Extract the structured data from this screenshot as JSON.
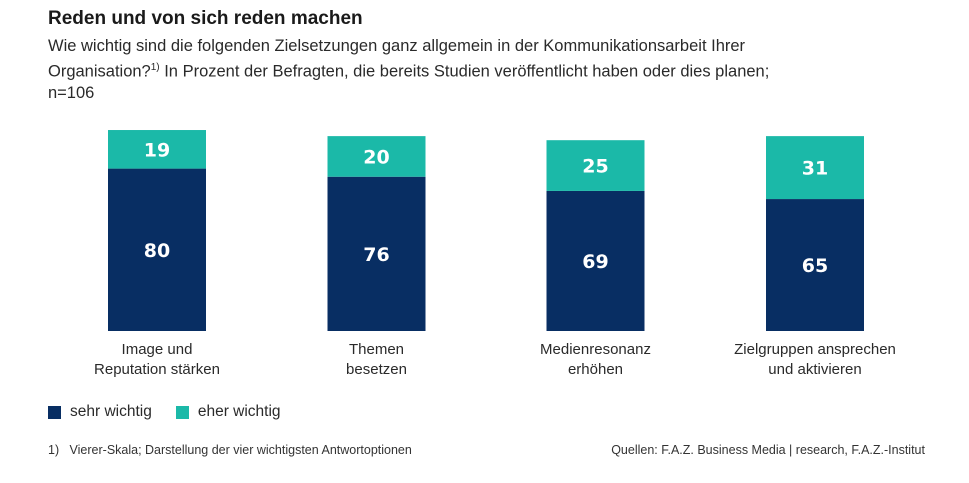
{
  "title": "Reden und von sich reden machen",
  "subtitle": {
    "line1": "Wie wichtig sind die folgenden Zielsetzungen ganz allgemein in der Kommunikationsarbeit Ihrer",
    "line2a": "Organisation?",
    "line2sup": "1)",
    "line2b": " In Prozent der Befragten, die bereits Studien veröffentlicht haben oder dies planen;",
    "line3": "n=106"
  },
  "legend": [
    {
      "label": "sehr wichtig",
      "color": "#082e63"
    },
    {
      "label": "eher wichtig",
      "color": "#1bb9a8"
    }
  ],
  "footnote": "1)   Vierer-Skala; Darstellung der vier wichtigsten Antwortoptionen",
  "source": "Quellen: F.A.Z. Business Media | research, F.A.Z.-Institut",
  "chart_data": {
    "type": "bar",
    "stacked": true,
    "title": "Reden und von sich reden machen",
    "xlabel": "",
    "ylabel": "Prozent der Befragten",
    "ylim": [
      0,
      100
    ],
    "grid": false,
    "legend_position": "bottom-left",
    "categories": [
      [
        "Image und",
        "Reputation stärken"
      ],
      [
        "Themen",
        "besetzen"
      ],
      [
        "Medienresonanz",
        "erhöhen"
      ],
      [
        "Zielgruppen ansprechen",
        "und aktivieren"
      ]
    ],
    "series": [
      {
        "name": "sehr wichtig",
        "color": "#082e63",
        "values": [
          80,
          76,
          69,
          65
        ]
      },
      {
        "name": "eher wichtig",
        "color": "#1bb9a8",
        "values": [
          19,
          20,
          25,
          31
        ]
      }
    ]
  }
}
